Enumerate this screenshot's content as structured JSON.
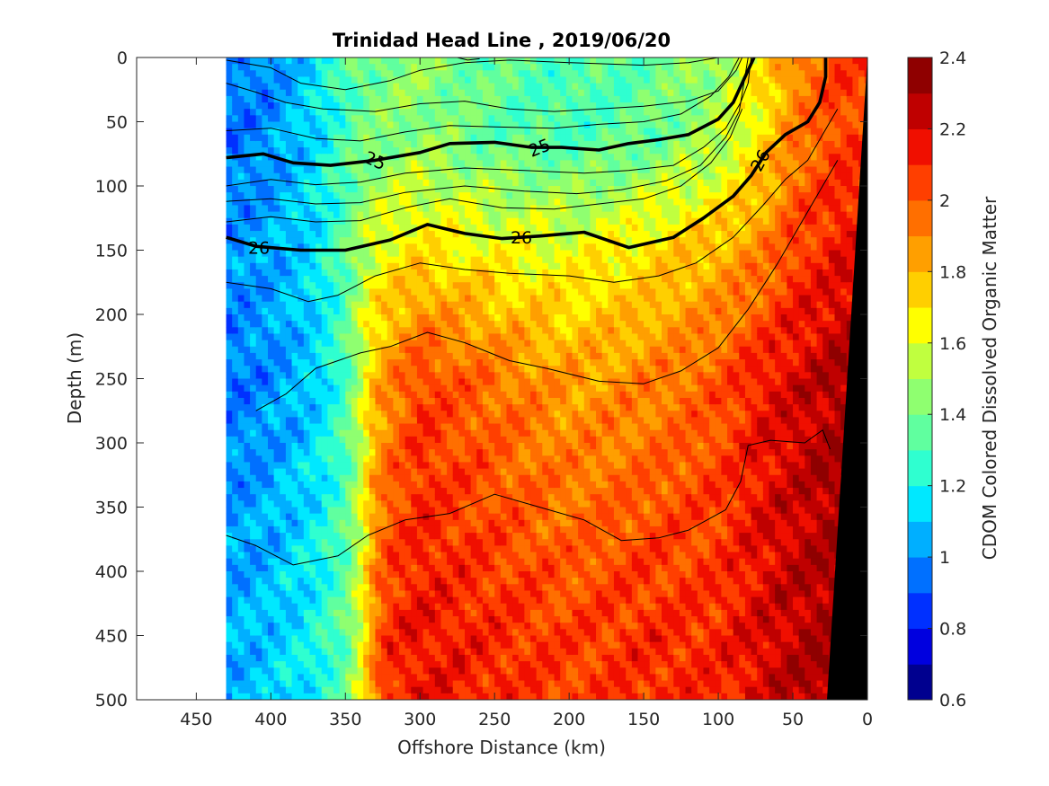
{
  "chart_data": {
    "type": "heatmap",
    "subtype": "filled-contour-section",
    "title": "Trinidad Head Line , 2019/06/20",
    "xlabel": "Offshore Distance (km)",
    "ylabel": "Depth (m)",
    "xlim": [
      490,
      0
    ],
    "x_reversed": true,
    "x_ticks": [
      450,
      400,
      350,
      300,
      250,
      200,
      150,
      100,
      50,
      0
    ],
    "ylim": [
      0,
      500
    ],
    "y_reversed": true,
    "y_ticks": [
      0,
      50,
      100,
      150,
      200,
      250,
      300,
      350,
      400,
      450,
      500
    ],
    "grid": false,
    "data_extent_km": [
      430,
      0
    ],
    "colorbar": {
      "label": "CDOM Colored Dissolved Organic Matter",
      "limits": [
        0.6,
        2.4
      ],
      "step": 0.1,
      "ticks": [
        0.6,
        0.8,
        1,
        1.2,
        1.4,
        1.6,
        1.8,
        2,
        2.2,
        2.4
      ],
      "colors": [
        "#00008f",
        "#0000df",
        "#0030ff",
        "#0070ff",
        "#00afff",
        "#00e8ff",
        "#2fffd0",
        "#60ff9f",
        "#8fff70",
        "#c0ff3f",
        "#ffff00",
        "#ffcf00",
        "#ff9f00",
        "#ff6f00",
        "#ff3f00",
        "#f00f00",
        "#bf0000",
        "#8f0000"
      ]
    },
    "field_description_profiles": {
      "x_km": [
        430,
        400,
        370,
        350,
        340,
        330,
        320,
        300,
        250,
        200,
        150,
        100,
        70,
        50,
        30,
        20
      ],
      "surface_0_60m": [
        0.95,
        1.0,
        1.15,
        1.3,
        1.38,
        1.4,
        1.42,
        1.45,
        1.35,
        1.3,
        1.35,
        1.5,
        1.7,
        1.9,
        2.0,
        2.05
      ],
      "depth_150m": [
        1.0,
        1.05,
        1.15,
        1.35,
        1.5,
        1.6,
        1.65,
        1.7,
        1.65,
        1.62,
        1.7,
        1.8,
        1.9,
        2.05,
        2.1,
        2.15
      ],
      "depth_250m": [
        0.95,
        1.0,
        1.1,
        1.3,
        1.55,
        1.8,
        1.9,
        2.05,
        1.95,
        1.85,
        1.9,
        2.0,
        2.15,
        2.2,
        2.25,
        2.3
      ],
      "depth_450m": [
        1.05,
        1.1,
        1.2,
        1.35,
        1.6,
        1.95,
        2.1,
        2.15,
        2.1,
        2.05,
        2.1,
        2.1,
        2.2,
        2.25,
        2.3,
        2.3
      ]
    },
    "contours": [
      {
        "level": "25",
        "labeled": true,
        "bold": true,
        "points": [
          [
            430,
            78
          ],
          [
            405,
            75
          ],
          [
            385,
            82
          ],
          [
            360,
            84
          ],
          [
            330,
            80
          ],
          [
            300,
            74
          ],
          [
            280,
            67
          ],
          [
            250,
            66
          ],
          [
            225,
            70
          ],
          [
            205,
            70
          ],
          [
            180,
            72
          ],
          [
            160,
            67
          ],
          [
            140,
            64
          ],
          [
            120,
            60
          ],
          [
            100,
            48
          ],
          [
            90,
            35
          ],
          [
            82,
            15
          ],
          [
            76,
            0
          ]
        ]
      },
      {
        "level": "26",
        "labeled": true,
        "bold": true,
        "points": [
          [
            430,
            140
          ],
          [
            410,
            147
          ],
          [
            380,
            150
          ],
          [
            350,
            150
          ],
          [
            320,
            142
          ],
          [
            295,
            130
          ],
          [
            270,
            137
          ],
          [
            245,
            141
          ],
          [
            220,
            139
          ],
          [
            190,
            136
          ],
          [
            160,
            148
          ],
          [
            130,
            140
          ],
          [
            110,
            125
          ],
          [
            90,
            108
          ],
          [
            78,
            92
          ],
          [
            68,
            74
          ],
          [
            55,
            60
          ],
          [
            40,
            50
          ],
          [
            32,
            35
          ],
          [
            28,
            15
          ],
          [
            28,
            0
          ]
        ]
      },
      {
        "level": "",
        "bold": false,
        "points": [
          [
            275,
            0
          ],
          [
            268,
            2
          ],
          [
            260,
            1
          ]
        ]
      },
      {
        "level": "",
        "bold": false,
        "points": [
          [
            430,
            2
          ],
          [
            400,
            8
          ],
          [
            380,
            20
          ],
          [
            350,
            25
          ],
          [
            320,
            18
          ],
          [
            300,
            10
          ],
          [
            270,
            4
          ],
          [
            240,
            2
          ],
          [
            200,
            4
          ],
          [
            150,
            6
          ],
          [
            120,
            4
          ],
          [
            100,
            0
          ]
        ]
      },
      {
        "level": "",
        "bold": false,
        "points": [
          [
            430,
            20
          ],
          [
            410,
            27
          ],
          [
            390,
            35
          ],
          [
            365,
            40
          ],
          [
            330,
            42
          ],
          [
            300,
            36
          ],
          [
            270,
            34
          ],
          [
            240,
            40
          ],
          [
            210,
            42
          ],
          [
            180,
            40
          ],
          [
            150,
            38
          ],
          [
            120,
            34
          ],
          [
            100,
            26
          ],
          [
            88,
            10
          ],
          [
            84,
            0
          ]
        ]
      },
      {
        "level": "",
        "bold": false,
        "points": [
          [
            430,
            57
          ],
          [
            400,
            55
          ],
          [
            370,
            63
          ],
          [
            340,
            65
          ],
          [
            310,
            58
          ],
          [
            280,
            53
          ],
          [
            250,
            54
          ],
          [
            210,
            55
          ],
          [
            180,
            52
          ],
          [
            150,
            50
          ],
          [
            125,
            44
          ],
          [
            105,
            30
          ],
          [
            93,
            15
          ],
          [
            86,
            0
          ]
        ]
      },
      {
        "level": "",
        "bold": false,
        "points": [
          [
            430,
            100
          ],
          [
            400,
            95
          ],
          [
            370,
            99
          ],
          [
            340,
            97
          ],
          [
            310,
            90
          ],
          [
            270,
            86
          ],
          [
            230,
            88
          ],
          [
            190,
            90
          ],
          [
            160,
            88
          ],
          [
            130,
            84
          ],
          [
            110,
            70
          ],
          [
            95,
            55
          ],
          [
            85,
            35
          ],
          [
            80,
            20
          ],
          [
            78,
            0
          ]
        ]
      },
      {
        "level": "",
        "bold": false,
        "points": [
          [
            430,
            112
          ],
          [
            400,
            110
          ],
          [
            370,
            114
          ],
          [
            340,
            113
          ],
          [
            310,
            105
          ],
          [
            270,
            100
          ],
          [
            230,
            104
          ],
          [
            195,
            106
          ],
          [
            165,
            103
          ],
          [
            135,
            96
          ],
          [
            112,
            84
          ],
          [
            95,
            62
          ],
          [
            86,
            42
          ],
          [
            80,
            0
          ]
        ]
      },
      {
        "level": "",
        "bold": false,
        "points": [
          [
            430,
            128
          ],
          [
            400,
            124
          ],
          [
            370,
            128
          ],
          [
            340,
            127
          ],
          [
            310,
            117
          ],
          [
            280,
            110
          ],
          [
            245,
            117
          ],
          [
            210,
            118
          ],
          [
            180,
            114
          ],
          [
            150,
            110
          ],
          [
            125,
            100
          ],
          [
            105,
            82
          ],
          [
            92,
            62
          ],
          [
            84,
            40
          ]
        ]
      },
      {
        "level": "",
        "bold": false,
        "points": [
          [
            430,
            175
          ],
          [
            400,
            180
          ],
          [
            375,
            190
          ],
          [
            355,
            185
          ],
          [
            330,
            170
          ],
          [
            300,
            160
          ],
          [
            270,
            165
          ],
          [
            240,
            168
          ],
          [
            200,
            170
          ],
          [
            170,
            175
          ],
          [
            140,
            170
          ],
          [
            115,
            160
          ],
          [
            90,
            140
          ],
          [
            70,
            115
          ],
          [
            55,
            95
          ],
          [
            40,
            80
          ],
          [
            30,
            60
          ],
          [
            20,
            40
          ]
        ]
      },
      {
        "level": "",
        "bold": false,
        "points": [
          [
            410,
            275
          ],
          [
            390,
            262
          ],
          [
            370,
            242
          ],
          [
            340,
            230
          ],
          [
            320,
            225
          ],
          [
            295,
            214
          ],
          [
            270,
            222
          ],
          [
            240,
            236
          ],
          [
            215,
            242
          ],
          [
            180,
            252
          ],
          [
            150,
            254
          ],
          [
            125,
            244
          ],
          [
            100,
            226
          ],
          [
            80,
            196
          ],
          [
            60,
            160
          ],
          [
            45,
            130
          ],
          [
            30,
            100
          ],
          [
            20,
            80
          ]
        ]
      },
      {
        "level": "",
        "bold": false,
        "points": [
          [
            430,
            372
          ],
          [
            410,
            380
          ],
          [
            385,
            395
          ],
          [
            355,
            388
          ],
          [
            335,
            372
          ],
          [
            310,
            360
          ],
          [
            280,
            355
          ],
          [
            250,
            340
          ],
          [
            220,
            350
          ],
          [
            190,
            360
          ],
          [
            165,
            376
          ],
          [
            140,
            374
          ],
          [
            120,
            368
          ],
          [
            95,
            352
          ],
          [
            85,
            330
          ],
          [
            80,
            302
          ],
          [
            65,
            298
          ],
          [
            42,
            300
          ],
          [
            30,
            290
          ],
          [
            25,
            305
          ]
        ]
      }
    ]
  }
}
